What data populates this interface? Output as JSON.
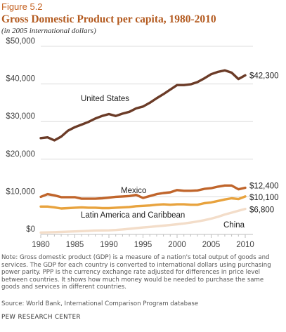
{
  "header": {
    "figure_label": "Figure 5.2",
    "title": "Gross Domestic Product per capita, 1980-2010",
    "subtitle": "(in 2005 international dollars)"
  },
  "chart_data": {
    "type": "line",
    "title": "Gross Domestic Product per capita, 1980-2010",
    "subtitle": "(in 2005 international dollars)",
    "xlabel": "",
    "ylabel": "",
    "x": [
      1980,
      1981,
      1982,
      1983,
      1984,
      1985,
      1986,
      1987,
      1988,
      1989,
      1990,
      1991,
      1992,
      1993,
      1994,
      1995,
      1996,
      1997,
      1998,
      1999,
      2000,
      2001,
      2002,
      2003,
      2004,
      2005,
      2006,
      2007,
      2008,
      2009,
      2010
    ],
    "xlim": [
      1980,
      2010
    ],
    "ylim": [
      0,
      50000
    ],
    "x_ticks": [
      1980,
      1985,
      1990,
      1995,
      2000,
      2005,
      2010
    ],
    "y_ticks": [
      0,
      10000,
      20000,
      30000,
      40000,
      50000
    ],
    "x_tick_labels": [
      "1980",
      "1985",
      "1990",
      "1995",
      "2000",
      "2005",
      "2010"
    ],
    "y_tick_labels": [
      "$0",
      "$10,000",
      "$20,000",
      "$30,000",
      "$40,000",
      "$50,000"
    ],
    "grid": "horizontal",
    "series": [
      {
        "name": "United States",
        "color": "#6b3b27",
        "end_label": "$42,300",
        "values": [
          25600,
          25800,
          25000,
          26000,
          27600,
          28500,
          29200,
          29900,
          30800,
          31500,
          32000,
          31500,
          32100,
          32600,
          33500,
          34000,
          35000,
          36200,
          37300,
          38500,
          39700,
          39700,
          39900,
          40500,
          41500,
          42600,
          43200,
          43600,
          43000,
          41300,
          42300
        ]
      },
      {
        "name": "Mexico",
        "color": "#c0652b",
        "end_label": "$12,400",
        "values": [
          10000,
          10700,
          10400,
          9900,
          9900,
          9900,
          9500,
          9500,
          9500,
          9600,
          9800,
          10000,
          10100,
          10200,
          10500,
          9700,
          10200,
          10700,
          11000,
          11200,
          11800,
          11600,
          11600,
          11700,
          12100,
          12300,
          12700,
          13000,
          13000,
          12000,
          12400
        ]
      },
      {
        "name": "Latin America and Caribbean",
        "color": "#e8a33e",
        "end_label": "$10,100",
        "values": [
          7400,
          7400,
          7200,
          6900,
          7000,
          7100,
          7200,
          7100,
          7100,
          7000,
          7000,
          7100,
          7200,
          7300,
          7500,
          7600,
          7700,
          7900,
          8000,
          7900,
          8000,
          8000,
          7900,
          7900,
          8300,
          8500,
          8900,
          9300,
          9600,
          9400,
          10100
        ]
      },
      {
        "name": "China",
        "color": "#f3ddc9",
        "end_label": "$6,800",
        "values": [
          500,
          550,
          600,
          650,
          730,
          810,
          870,
          950,
          1040,
          1060,
          1090,
          1180,
          1330,
          1500,
          1680,
          1840,
          2000,
          2180,
          2340,
          2500,
          2710,
          2910,
          3160,
          3460,
          3790,
          4190,
          4690,
          5300,
          5780,
          6300,
          6800
        ]
      }
    ]
  },
  "footer": {
    "note": "Note: Gross domestic product (GDP) is a measure of a nation's total output of goods and services. The GDP for each country is converted to international dollars using purchasing power parity. PPP is the currency exchange rate adjusted for differences in price level between countries. It shows how much money would be needed to purchase the same goods and services in different countries.",
    "source": "Source: World Bank, International Comparison Program database",
    "organization": "PEW RESEARCH CENTER"
  }
}
